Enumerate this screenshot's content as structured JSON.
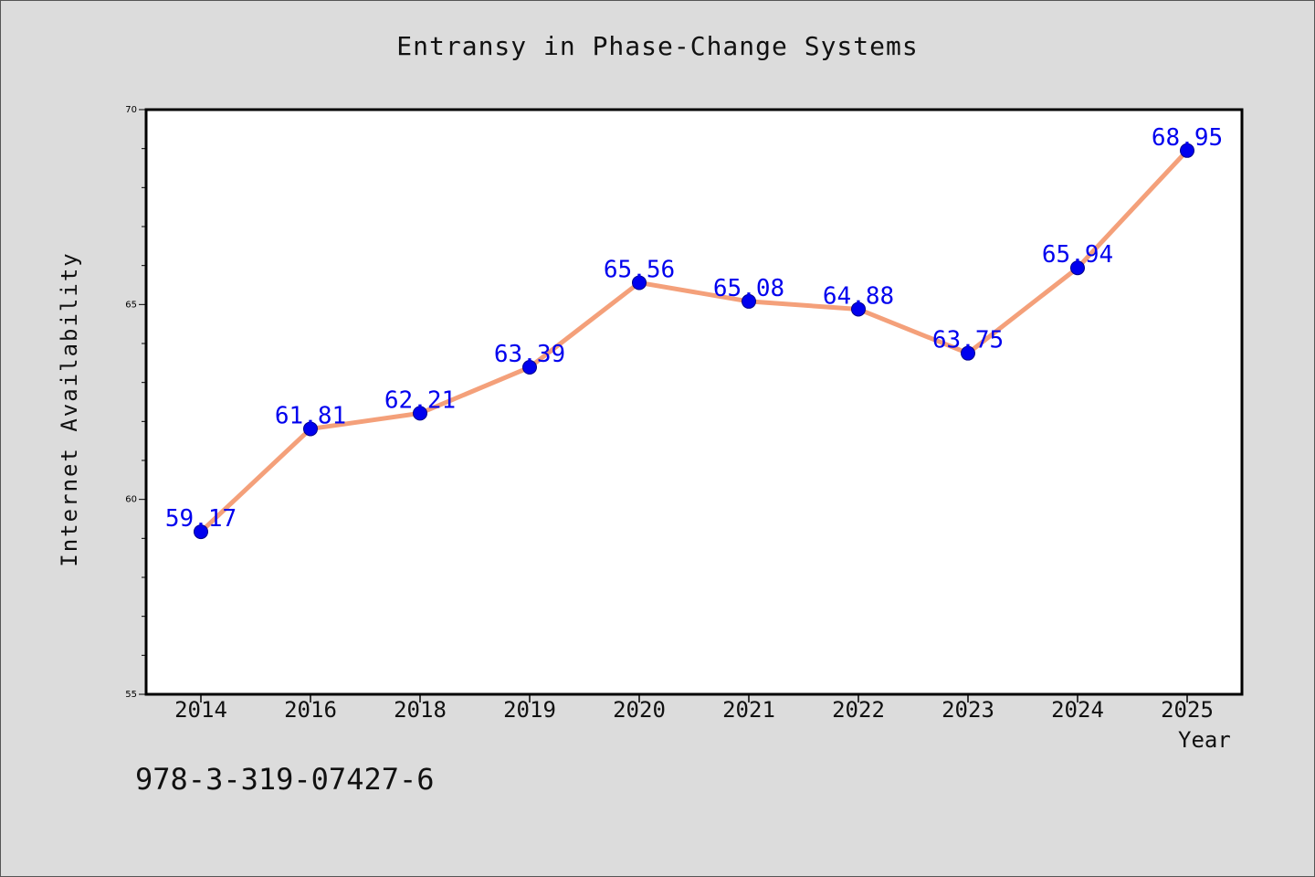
{
  "chart_data": {
    "type": "line",
    "title": "Entransy in Phase-Change Systems",
    "xlabel": "Year",
    "ylabel": "Internet Availability",
    "categories": [
      "2014",
      "2016",
      "2018",
      "2019",
      "2020",
      "2021",
      "2022",
      "2023",
      "2024",
      "2025"
    ],
    "series": [
      {
        "values": [
          59.17,
          61.81,
          62.21,
          63.39,
          65.56,
          65.08,
          64.88,
          63.75,
          65.94,
          68.95
        ]
      }
    ],
    "ylim": [
      55,
      70
    ],
    "yticks": [
      "55",
      "60",
      "65",
      "70"
    ],
    "data_labels": [
      "59.17",
      "61.81",
      "62.21",
      "63.39",
      "65.56",
      "65.08",
      "64.88",
      "63.75",
      "65.94",
      "68.95"
    ],
    "grid": false,
    "line_color": "#f4a07a",
    "marker_color": "#0000ee",
    "label_color": "#0000ee"
  },
  "footer_code": "978-3-319-07427-6"
}
